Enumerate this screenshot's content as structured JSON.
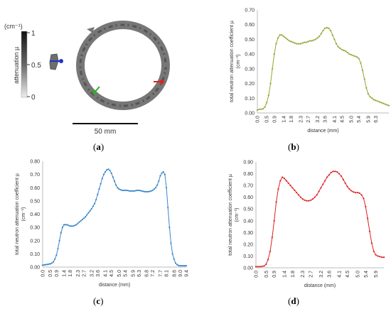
{
  "panel_a": {
    "label_open": "(",
    "label_letter": "a",
    "label_close": ")",
    "colorbar_unit": "(cm⁻¹)",
    "colorbar_title": "attenuation µ",
    "colorbar_ticks": [
      "1",
      "0.5",
      "0"
    ],
    "scalebar_label": "50 mm",
    "markers": {
      "blue": "#2233cc",
      "green": "#33aa33",
      "red": "#dd2222"
    }
  },
  "chart_data": [
    {
      "panel": "b",
      "type": "line",
      "color": "#8fa832",
      "ylabel": "total neutron attenuation coefficient µ",
      "yunit": "(cm⁻¹)",
      "xlabel": "distance (mm)",
      "ylim": [
        0,
        0.7
      ],
      "yticks": [
        "0.00",
        "0.10",
        "0.20",
        "0.30",
        "0.40",
        "0.50",
        "0.60",
        "0.70"
      ],
      "xticks": [
        "0.0",
        "0.5",
        "0.9",
        "1.4",
        "1.8",
        "2.3",
        "2.7",
        "3.2",
        "3.6",
        "4.1",
        "4.5",
        "5.0",
        "5.4",
        "5.9",
        "6.3"
      ],
      "x_step": 0.1,
      "values": [
        0.02,
        0.025,
        0.025,
        0.028,
        0.04,
        0.07,
        0.12,
        0.2,
        0.3,
        0.4,
        0.47,
        0.51,
        0.53,
        0.53,
        0.52,
        0.51,
        0.5,
        0.49,
        0.485,
        0.48,
        0.475,
        0.47,
        0.47,
        0.47,
        0.475,
        0.48,
        0.48,
        0.485,
        0.49,
        0.49,
        0.495,
        0.5,
        0.51,
        0.52,
        0.54,
        0.56,
        0.575,
        0.58,
        0.575,
        0.56,
        0.53,
        0.5,
        0.47,
        0.45,
        0.44,
        0.43,
        0.425,
        0.42,
        0.41,
        0.4,
        0.395,
        0.39,
        0.385,
        0.38,
        0.37,
        0.34,
        0.29,
        0.23,
        0.17,
        0.13,
        0.11,
        0.1,
        0.09,
        0.085,
        0.08,
        0.075,
        0.07,
        0.065,
        0.06,
        0.055,
        0.05
      ]
    },
    {
      "panel": "c",
      "type": "line",
      "color": "#3a86c8",
      "ylabel": "total neutron attenuation coefficient µ",
      "yunit": "(cm⁻¹)",
      "xlabel": "distance (mm)",
      "ylim": [
        0,
        0.8
      ],
      "yticks": [
        "0.00",
        "0.10",
        "0.20",
        "0.30",
        "0.40",
        "0.50",
        "0.60",
        "0.70",
        "0.80"
      ],
      "xticks": [
        "0.0",
        "0.5",
        "0.9",
        "1.4",
        "1.8",
        "2.3",
        "2.7",
        "3.2",
        "3.6",
        "4.1",
        "4.5",
        "5.0",
        "5.4",
        "5.9",
        "6.3",
        "6.8",
        "7.2",
        "7.7",
        "8.1",
        "8.6",
        "9.0",
        "9.4"
      ],
      "x_step": 0.1,
      "values": [
        0.015,
        0.016,
        0.018,
        0.02,
        0.022,
        0.025,
        0.03,
        0.04,
        0.06,
        0.09,
        0.14,
        0.2,
        0.26,
        0.3,
        0.32,
        0.32,
        0.32,
        0.315,
        0.31,
        0.31,
        0.31,
        0.315,
        0.32,
        0.33,
        0.34,
        0.35,
        0.36,
        0.37,
        0.38,
        0.395,
        0.41,
        0.425,
        0.44,
        0.46,
        0.48,
        0.51,
        0.55,
        0.59,
        0.63,
        0.67,
        0.7,
        0.72,
        0.735,
        0.74,
        0.73,
        0.71,
        0.68,
        0.65,
        0.62,
        0.6,
        0.59,
        0.585,
        0.58,
        0.58,
        0.58,
        0.58,
        0.578,
        0.575,
        0.575,
        0.575,
        0.575,
        0.578,
        0.58,
        0.58,
        0.578,
        0.575,
        0.572,
        0.57,
        0.57,
        0.57,
        0.572,
        0.575,
        0.58,
        0.59,
        0.6,
        0.62,
        0.65,
        0.69,
        0.71,
        0.72,
        0.7,
        0.6,
        0.45,
        0.3,
        0.18,
        0.1,
        0.06,
        0.03,
        0.018,
        0.012,
        0.01,
        0.01,
        0.01,
        0.01,
        0.01
      ]
    },
    {
      "panel": "d",
      "type": "line",
      "color": "#dd2222",
      "ylabel": "total neutron attenuation coefficient µ",
      "yunit": "(cm⁻¹)",
      "xlabel": "distance (mm)",
      "ylim": [
        0,
        0.9
      ],
      "yticks": [
        "0.00",
        "0.10",
        "0.20",
        "0.30",
        "0.40",
        "0.50",
        "0.60",
        "0.70",
        "0.80",
        "0.90"
      ],
      "xticks": [
        "0.0",
        "0.5",
        "0.9",
        "1.4",
        "1.8",
        "2.3",
        "2.7",
        "3.2",
        "3.6",
        "4.1",
        "4.5",
        "5.0",
        "5.4",
        "5.9"
      ],
      "x_step": 0.1,
      "values": [
        0.01,
        0.01,
        0.01,
        0.012,
        0.015,
        0.03,
        0.07,
        0.14,
        0.26,
        0.4,
        0.56,
        0.67,
        0.74,
        0.77,
        0.76,
        0.74,
        0.72,
        0.7,
        0.68,
        0.66,
        0.64,
        0.62,
        0.6,
        0.585,
        0.575,
        0.57,
        0.57,
        0.575,
        0.585,
        0.6,
        0.62,
        0.65,
        0.68,
        0.71,
        0.74,
        0.77,
        0.79,
        0.81,
        0.82,
        0.82,
        0.815,
        0.8,
        0.78,
        0.75,
        0.72,
        0.69,
        0.67,
        0.655,
        0.645,
        0.64,
        0.64,
        0.635,
        0.62,
        0.59,
        0.52,
        0.42,
        0.31,
        0.21,
        0.14,
        0.11,
        0.1,
        0.095,
        0.09,
        0.09
      ]
    }
  ],
  "panel_labels": [
    {
      "open": "(",
      "letter": "b",
      "close": ")"
    },
    {
      "open": "(",
      "letter": "c",
      "close": ")"
    },
    {
      "open": "(",
      "letter": "d",
      "close": ")"
    }
  ]
}
